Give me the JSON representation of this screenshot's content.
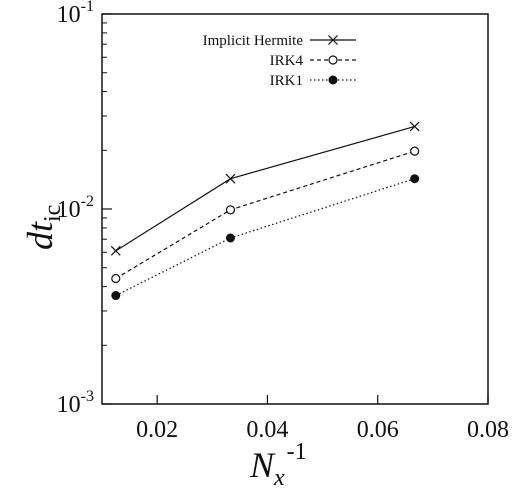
{
  "chart_data": {
    "type": "line",
    "scale": {
      "x": "linear",
      "y": "log"
    },
    "xlim": [
      0.01,
      0.08
    ],
    "ylim": [
      0.001,
      0.1
    ],
    "x_ticks": [
      {
        "value": 0.02,
        "label": "0.02"
      },
      {
        "value": 0.04,
        "label": "0.04"
      },
      {
        "value": 0.06,
        "label": "0.06"
      },
      {
        "value": 0.08,
        "label": "0.08"
      }
    ],
    "y_ticks": [
      {
        "value": 0.001,
        "mantissa": "10",
        "exp": "-3"
      },
      {
        "value": 0.01,
        "mantissa": "10",
        "exp": "-2"
      },
      {
        "value": 0.1,
        "mantissa": "10",
        "exp": "-1"
      }
    ],
    "xlabel": {
      "base": "N",
      "sub": "x",
      "sup": "-1"
    },
    "ylabel": {
      "base": "dt",
      "sub": "ic"
    },
    "grid": false,
    "legend_position": "top-right",
    "x": [
      0.0125,
      0.0333,
      0.0667
    ],
    "series": [
      {
        "name": "Implicit Hermite",
        "line": "solid",
        "marker": "cross",
        "values": [
          0.0061,
          0.0143,
          0.0265
        ],
        "color": "#111111"
      },
      {
        "name": "IRK4",
        "line": "dashed",
        "marker": "open-circle",
        "values": [
          0.0044,
          0.0099,
          0.0198
        ],
        "color": "#111111"
      },
      {
        "name": "IRK1",
        "line": "dotted",
        "marker": "filled-circle",
        "values": [
          0.0036,
          0.0071,
          0.0143
        ],
        "color": "#111111"
      }
    ]
  }
}
